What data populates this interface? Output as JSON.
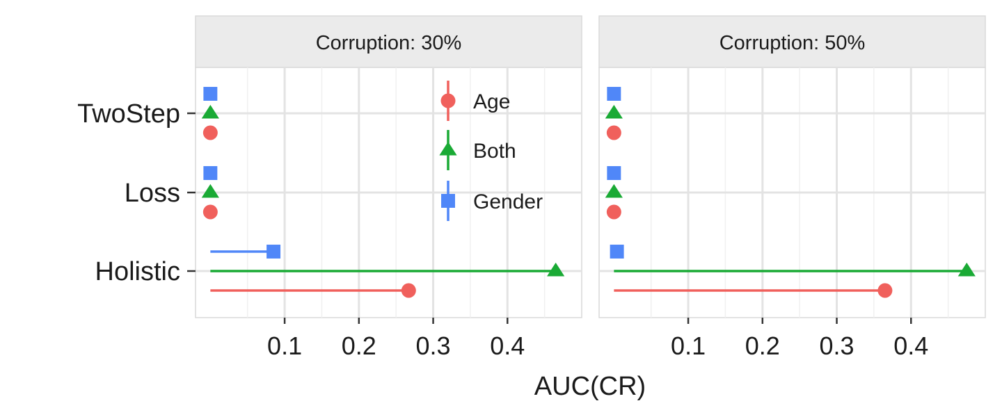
{
  "chart_data": {
    "type": "lollipop",
    "xlabel": "AUC(CR)",
    "ylabel": "",
    "categories": [
      "TwoStep",
      "Loss",
      "Holistic"
    ],
    "xlim": [
      -0.02,
      0.5
    ],
    "xticks": [
      0.1,
      0.2,
      0.3,
      0.4
    ],
    "xtick_labels": [
      "0.1",
      "0.2",
      "0.3",
      "0.4"
    ],
    "grid": true,
    "legend": {
      "placement": "inside-top-right-of-first-panel"
    },
    "series_style": [
      {
        "name": "Age",
        "color": "#F0605C",
        "shape": "circle-icon"
      },
      {
        "name": "Both",
        "color": "#1AAA35",
        "shape": "triangle-icon"
      },
      {
        "name": "Gender",
        "color": "#5087F8",
        "shape": "square-icon"
      }
    ],
    "panels": [
      {
        "strip": "Corruption: 30%",
        "series": [
          {
            "name": "Age",
            "values": [
              0.0,
              0.0,
              0.267
            ]
          },
          {
            "name": "Both",
            "values": [
              0.0,
              0.0,
              0.465
            ]
          },
          {
            "name": "Gender",
            "values": [
              0.0,
              0.0,
              0.085
            ]
          }
        ]
      },
      {
        "strip": "Corruption: 50%",
        "series": [
          {
            "name": "Age",
            "values": [
              0.0,
              0.0,
              0.365
            ]
          },
          {
            "name": "Both",
            "values": [
              0.0,
              0.0,
              0.475
            ]
          },
          {
            "name": "Gender",
            "values": [
              0.0,
              0.0,
              0.004
            ]
          }
        ]
      }
    ]
  }
}
